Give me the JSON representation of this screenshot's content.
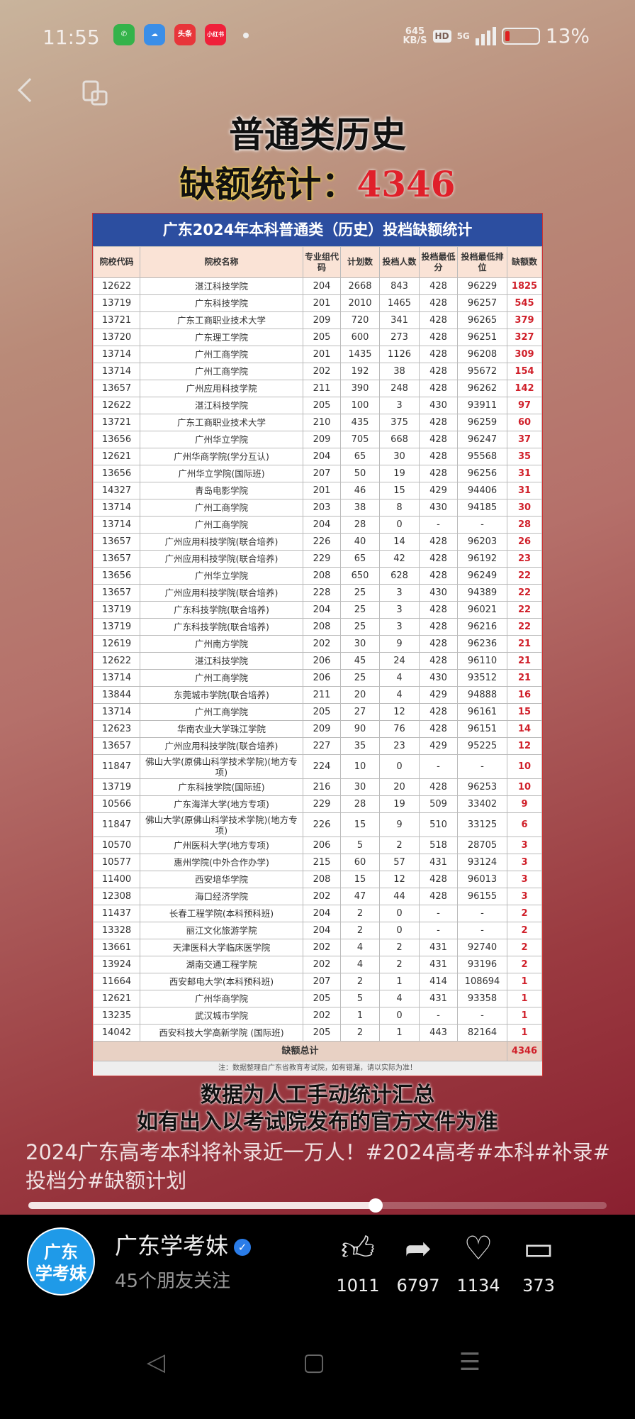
{
  "status": {
    "time": "11:55",
    "speed": "645",
    "speed_unit": "KB/S",
    "hd": "HD",
    "network": "5G",
    "battery": "13%",
    "battery_level": 0.13,
    "apps": [
      {
        "name": "phone",
        "label": "",
        "color": "#34b34a"
      },
      {
        "name": "weather",
        "label": "",
        "color": "#3a8ee8"
      },
      {
        "name": "toutiao",
        "label": "头条",
        "color": "#e8353a"
      },
      {
        "name": "xiaohongshu",
        "label": "小红书",
        "color": "#f0203a"
      }
    ]
  },
  "video": {
    "heading1": "普通类历史",
    "heading2_label": "缺额统计：",
    "heading2_value": "4346",
    "table": {
      "title": "广东2024年本科普通类（历史）投档缺额统计",
      "headers": [
        "院校代码",
        "院校名称",
        "专业组代码",
        "计划数",
        "投档人数",
        "投档最低分",
        "投档最低排位",
        "缺额数"
      ],
      "rows": [
        [
          "12622",
          "湛江科技学院",
          "204",
          "2668",
          "843",
          "428",
          "96229",
          "1825"
        ],
        [
          "13719",
          "广东科技学院",
          "201",
          "2010",
          "1465",
          "428",
          "96257",
          "545"
        ],
        [
          "13721",
          "广东工商职业技术大学",
          "209",
          "720",
          "341",
          "428",
          "96265",
          "379"
        ],
        [
          "13720",
          "广东理工学院",
          "205",
          "600",
          "273",
          "428",
          "96251",
          "327"
        ],
        [
          "13714",
          "广州工商学院",
          "201",
          "1435",
          "1126",
          "428",
          "96208",
          "309"
        ],
        [
          "13714",
          "广州工商学院",
          "202",
          "192",
          "38",
          "428",
          "95672",
          "154"
        ],
        [
          "13657",
          "广州应用科技学院",
          "211",
          "390",
          "248",
          "428",
          "96262",
          "142"
        ],
        [
          "12622",
          "湛江科技学院",
          "205",
          "100",
          "3",
          "430",
          "93911",
          "97"
        ],
        [
          "13721",
          "广东工商职业技术大学",
          "210",
          "435",
          "375",
          "428",
          "96259",
          "60"
        ],
        [
          "13656",
          "广州华立学院",
          "209",
          "705",
          "668",
          "428",
          "96247",
          "37"
        ],
        [
          "12621",
          "广州华商学院(学分互认)",
          "204",
          "65",
          "30",
          "428",
          "95568",
          "35"
        ],
        [
          "13656",
          "广州华立学院(国际班)",
          "207",
          "50",
          "19",
          "428",
          "96256",
          "31"
        ],
        [
          "14327",
          "青岛电影学院",
          "201",
          "46",
          "15",
          "429",
          "94406",
          "31"
        ],
        [
          "13714",
          "广州工商学院",
          "203",
          "38",
          "8",
          "430",
          "94185",
          "30"
        ],
        [
          "13714",
          "广州工商学院",
          "204",
          "28",
          "0",
          "-",
          "-",
          "28"
        ],
        [
          "13657",
          "广州应用科技学院(联合培养)",
          "226",
          "40",
          "14",
          "428",
          "96203",
          "26"
        ],
        [
          "13657",
          "广州应用科技学院(联合培养)",
          "229",
          "65",
          "42",
          "428",
          "96192",
          "23"
        ],
        [
          "13656",
          "广州华立学院",
          "208",
          "650",
          "628",
          "428",
          "96249",
          "22"
        ],
        [
          "13657",
          "广州应用科技学院(联合培养)",
          "228",
          "25",
          "3",
          "430",
          "94389",
          "22"
        ],
        [
          "13719",
          "广东科技学院(联合培养)",
          "204",
          "25",
          "3",
          "428",
          "96021",
          "22"
        ],
        [
          "13719",
          "广东科技学院(联合培养)",
          "208",
          "25",
          "3",
          "428",
          "96216",
          "22"
        ],
        [
          "12619",
          "广州南方学院",
          "202",
          "30",
          "9",
          "428",
          "96236",
          "21"
        ],
        [
          "12622",
          "湛江科技学院",
          "206",
          "45",
          "24",
          "428",
          "96110",
          "21"
        ],
        [
          "13714",
          "广州工商学院",
          "206",
          "25",
          "4",
          "430",
          "93512",
          "21"
        ],
        [
          "13844",
          "东莞城市学院(联合培养)",
          "211",
          "20",
          "4",
          "429",
          "94888",
          "16"
        ],
        [
          "13714",
          "广州工商学院",
          "205",
          "27",
          "12",
          "428",
          "96161",
          "15"
        ],
        [
          "12623",
          "华南农业大学珠江学院",
          "209",
          "90",
          "76",
          "428",
          "96151",
          "14"
        ],
        [
          "13657",
          "广州应用科技学院(联合培养)",
          "227",
          "35",
          "23",
          "429",
          "95225",
          "12"
        ],
        [
          "11847",
          "佛山大学(原佛山科学技术学院)(地方专项)",
          "224",
          "10",
          "0",
          "-",
          "-",
          "10"
        ],
        [
          "13719",
          "广东科技学院(国际班)",
          "216",
          "30",
          "20",
          "428",
          "96253",
          "10"
        ],
        [
          "10566",
          "广东海洋大学(地方专项)",
          "229",
          "28",
          "19",
          "509",
          "33402",
          "9"
        ],
        [
          "11847",
          "佛山大学(原佛山科学技术学院)(地方专项)",
          "226",
          "15",
          "9",
          "510",
          "33125",
          "6"
        ],
        [
          "10570",
          "广州医科大学(地方专项)",
          "206",
          "5",
          "2",
          "518",
          "28705",
          "3"
        ],
        [
          "10577",
          "惠州学院(中外合作办学)",
          "215",
          "60",
          "57",
          "431",
          "93124",
          "3"
        ],
        [
          "11400",
          "西安培华学院",
          "208",
          "15",
          "12",
          "428",
          "96013",
          "3"
        ],
        [
          "12308",
          "海口经济学院",
          "202",
          "47",
          "44",
          "428",
          "96155",
          "3"
        ],
        [
          "11437",
          "长春工程学院(本科预科班)",
          "204",
          "2",
          "0",
          "-",
          "-",
          "2"
        ],
        [
          "13328",
          "丽江文化旅游学院",
          "204",
          "2",
          "0",
          "-",
          "-",
          "2"
        ],
        [
          "13661",
          "天津医科大学临床医学院",
          "202",
          "4",
          "2",
          "431",
          "92740",
          "2"
        ],
        [
          "13924",
          "湖南交通工程学院",
          "202",
          "4",
          "2",
          "431",
          "93196",
          "2"
        ],
        [
          "11664",
          "西安邮电大学(本科预科班)",
          "207",
          "2",
          "1",
          "414",
          "108694",
          "1"
        ],
        [
          "12621",
          "广州华商学院",
          "205",
          "5",
          "4",
          "431",
          "93358",
          "1"
        ],
        [
          "13235",
          "武汉城市学院",
          "202",
          "1",
          "0",
          "-",
          "-",
          "1"
        ],
        [
          "14042",
          "西安科技大学高新学院 (国际班)",
          "205",
          "2",
          "1",
          "443",
          "82164",
          "1"
        ]
      ],
      "total_label": "缺额总计",
      "total_value": "4346",
      "note": "注：数据整理自广东省教育考试院，如有错漏，请以实际为准！"
    },
    "subtitle1": "数据为人工手动统计汇总",
    "subtitle2": "如有出入以考试院发布的官方文件为准"
  },
  "caption": "2024广东高考本科将补录近一万人！#2024高考#本科#补录#投档分#缺额计划",
  "progress": 0.6,
  "author": {
    "avatar_text": "广东学考妹",
    "name": "广东学考妹",
    "followers": "45个朋友关注"
  },
  "actions": [
    {
      "icon": "thumbs-up-icon",
      "glyph": "👍︎",
      "count": "1011"
    },
    {
      "icon": "share-icon",
      "glyph": "➦",
      "count": "6797"
    },
    {
      "icon": "heart-icon",
      "glyph": "♡",
      "count": "1134"
    },
    {
      "icon": "comment-icon",
      "glyph": "▭",
      "count": "373"
    }
  ]
}
